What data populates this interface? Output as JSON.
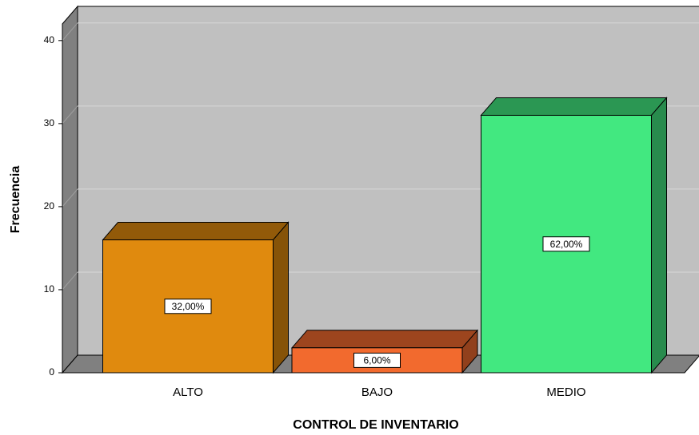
{
  "chart_data": {
    "type": "bar3d",
    "x_label": "CONTROL DE INVENTARIO",
    "y_label": "Frecuencia",
    "categories": [
      "ALTO",
      "BAJO",
      "MEDIO"
    ],
    "values": [
      16,
      3,
      31
    ],
    "data_labels": [
      "32,00%",
      "6,00%",
      "62,00%"
    ],
    "colors": [
      "#e08a0e",
      "#f26a2e",
      "#42e880"
    ],
    "ylim": [
      0,
      42
    ],
    "yticks": [
      0,
      10,
      20,
      30,
      40
    ],
    "grid": true
  }
}
